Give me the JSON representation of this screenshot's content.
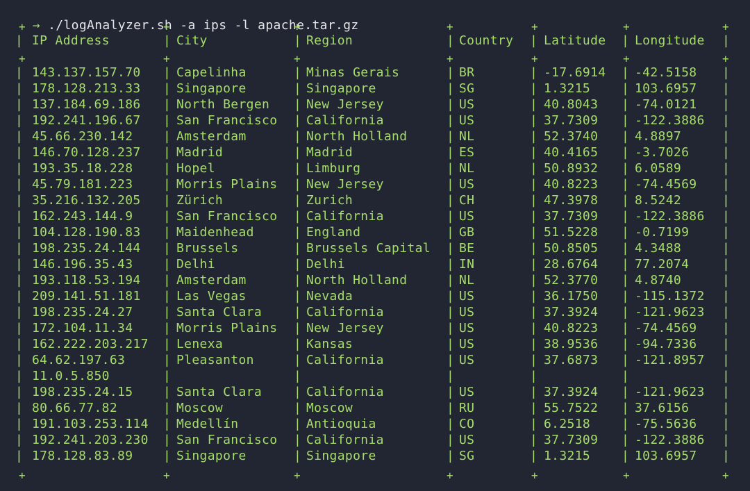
{
  "terminal": {
    "prompt_symbol": "→",
    "command": " ./logAnalyzer.sh -a ips -l apache.tar.gz",
    "separator_char": "+",
    "pipe_char": "|"
  },
  "table": {
    "headers": [
      "IP Address",
      "City",
      "Region",
      "Country",
      "Latitude",
      "Longitude"
    ],
    "rows": [
      [
        "143.137.157.70",
        "Capelinha",
        "Minas Gerais",
        "BR",
        "-17.6914",
        "-42.5158"
      ],
      [
        "178.128.213.33",
        "Singapore",
        "Singapore",
        "SG",
        "1.3215",
        "103.6957"
      ],
      [
        "137.184.69.186",
        "North Bergen",
        "New Jersey",
        "US",
        "40.8043",
        "-74.0121"
      ],
      [
        "192.241.196.67",
        "San Francisco",
        "California",
        "US",
        "37.7309",
        "-122.3886"
      ],
      [
        "45.66.230.142",
        "Amsterdam",
        "North Holland",
        "NL",
        "52.3740",
        "4.8897"
      ],
      [
        "146.70.128.237",
        "Madrid",
        "Madrid",
        "ES",
        "40.4165",
        "-3.7026"
      ],
      [
        "193.35.18.228",
        "Hopel",
        "Limburg",
        "NL",
        "50.8932",
        "6.0589"
      ],
      [
        "45.79.181.223",
        "Morris Plains",
        "New Jersey",
        "US",
        "40.8223",
        "-74.4569"
      ],
      [
        "35.216.132.205",
        "Zürich",
        "Zurich",
        "CH",
        "47.3978",
        "8.5242"
      ],
      [
        "162.243.144.9",
        "San Francisco",
        "California",
        "US",
        "37.7309",
        "-122.3886"
      ],
      [
        "104.128.190.83",
        "Maidenhead",
        "England",
        "GB",
        "51.5228",
        "-0.7199"
      ],
      [
        "198.235.24.144",
        "Brussels",
        "Brussels Capital",
        "BE",
        "50.8505",
        "4.3488"
      ],
      [
        "146.196.35.43",
        "Delhi",
        "Delhi",
        "IN",
        "28.6764",
        "77.2074"
      ],
      [
        "193.118.53.194",
        "Amsterdam",
        "North Holland",
        "NL",
        "52.3770",
        "4.8740"
      ],
      [
        "209.141.51.181",
        "Las Vegas",
        "Nevada",
        "US",
        "36.1750",
        "-115.1372"
      ],
      [
        "198.235.24.27",
        "Santa Clara",
        "California",
        "US",
        "37.3924",
        "-121.9623"
      ],
      [
        "172.104.11.34",
        "Morris Plains",
        "New Jersey",
        "US",
        "40.8223",
        "-74.4569"
      ],
      [
        "162.222.203.217",
        "Lenexa",
        "Kansas",
        "US",
        "38.9536",
        "-94.7336"
      ],
      [
        "64.62.197.63",
        "Pleasanton",
        "California",
        "US",
        "37.6873",
        "-121.8957"
      ],
      [
        "11.0.5.850",
        "",
        "",
        "",
        "",
        ""
      ],
      [
        "198.235.24.15",
        "Santa Clara",
        "California",
        "US",
        "37.3924",
        "-121.9623"
      ],
      [
        "80.66.77.82",
        "Moscow",
        "Moscow",
        "RU",
        "55.7522",
        "37.6156"
      ],
      [
        "191.103.253.114",
        "Medellín",
        "Antioquia",
        "CO",
        "6.2518",
        "-75.5636"
      ],
      [
        "192.241.203.230",
        "San Francisco",
        "California",
        "US",
        "37.7309",
        "-122.3886"
      ],
      [
        "178.128.83.89",
        "Singapore",
        "Singapore",
        "SG",
        "1.3215",
        "103.6957"
      ]
    ]
  }
}
